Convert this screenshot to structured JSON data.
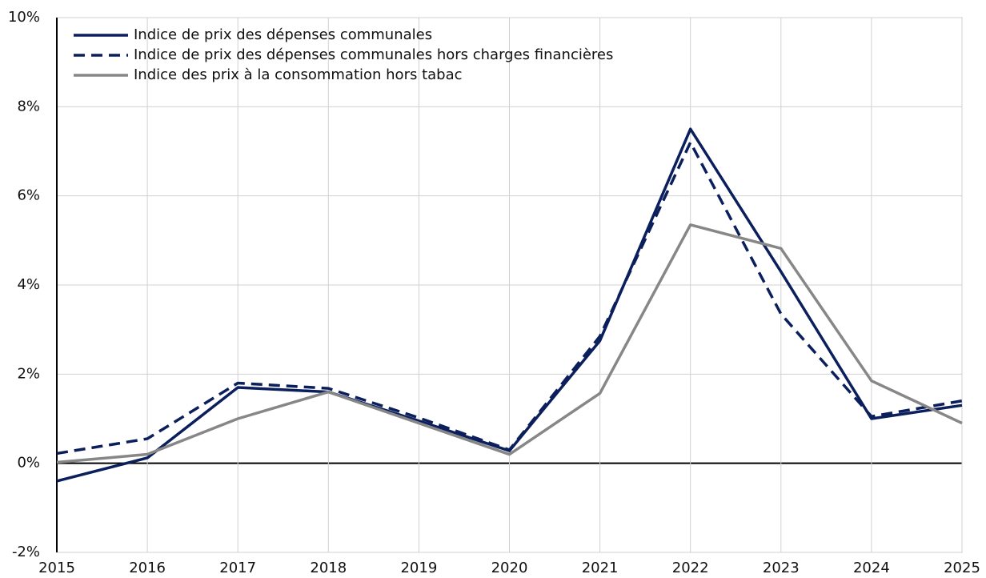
{
  "chart_data": {
    "type": "line",
    "x": [
      2015,
      2016,
      2017,
      2018,
      2019,
      2020,
      2021,
      2022,
      2023,
      2024,
      2025
    ],
    "series": [
      {
        "name": "Indice de prix des dépenses communales",
        "color": "#0b1f5c",
        "dashed": false,
        "values": [
          -0.4,
          0.12,
          1.7,
          1.6,
          0.95,
          0.28,
          2.75,
          7.5,
          4.3,
          1.0,
          1.3
        ]
      },
      {
        "name": "Indice de prix des dépenses communales hors charges financières",
        "color": "#0b1f5c",
        "dashed": true,
        "values": [
          0.22,
          0.55,
          1.8,
          1.68,
          1.02,
          0.3,
          2.85,
          7.2,
          3.35,
          1.05,
          1.4
        ]
      },
      {
        "name": "Indice des prix à la consommation hors tabac",
        "color": "#878787",
        "dashed": false,
        "values": [
          0.02,
          0.2,
          1.0,
          1.6,
          0.9,
          0.2,
          1.57,
          5.35,
          4.82,
          1.85,
          0.9
        ]
      }
    ],
    "xlim": [
      2015,
      2025
    ],
    "xticks": [
      2015,
      2016,
      2017,
      2018,
      2019,
      2020,
      2021,
      2022,
      2023,
      2024,
      2025
    ],
    "ylim": [
      -2,
      10
    ],
    "yticks": [
      {
        "value": -2,
        "label": "-2%"
      },
      {
        "value": 0,
        "label": "0%"
      },
      {
        "value": 2,
        "label": "2%"
      },
      {
        "value": 4,
        "label": "4%"
      },
      {
        "value": 6,
        "label": "6%"
      },
      {
        "value": 8,
        "label": "8%"
      },
      {
        "value": 10,
        "label": "10%"
      }
    ],
    "grid": true,
    "legend": "upper-left"
  }
}
